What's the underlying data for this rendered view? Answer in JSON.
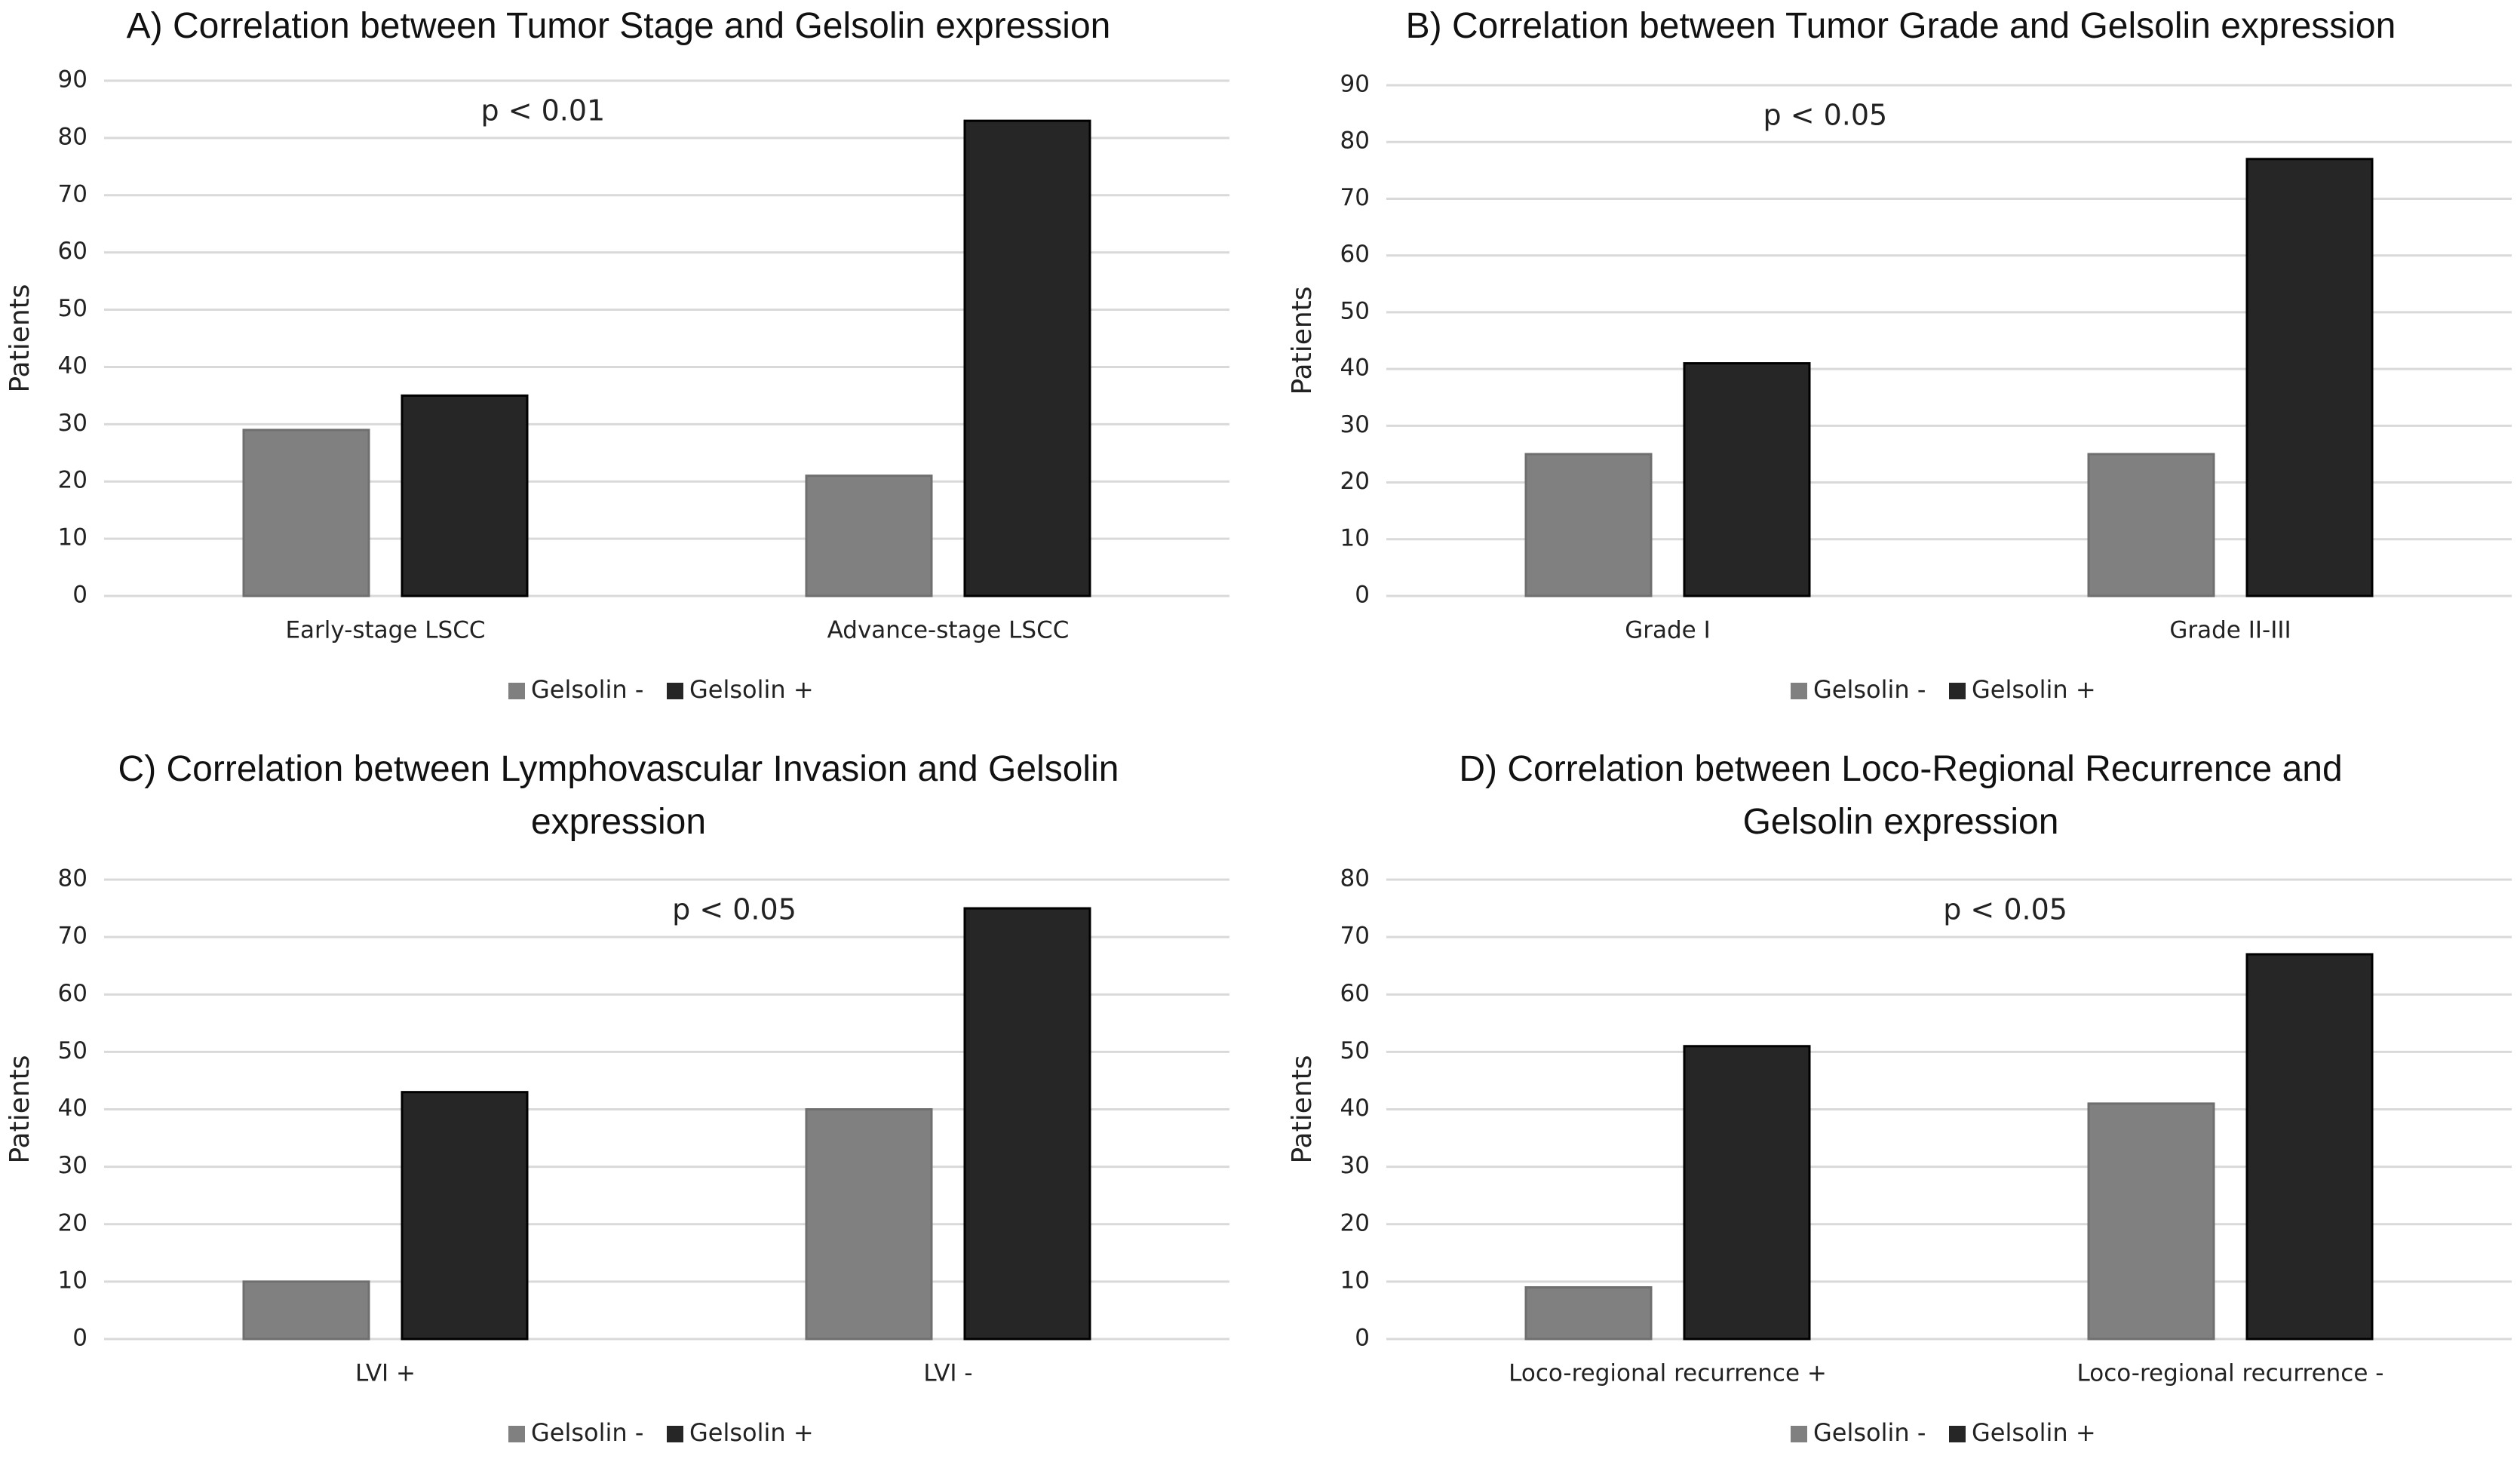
{
  "chart_data": [
    {
      "type": "bar",
      "title": "A) Correlation between Tumor Stage and Gelsolin expression",
      "annotation": "p < 0.01",
      "y_label": "Patients",
      "categories": [
        "Early-stage LSCC",
        "Advance-stage LSCC"
      ],
      "series": [
        {
          "name": "Gelsolin -",
          "color": "#808080",
          "values": [
            29,
            21
          ]
        },
        {
          "name": "Gelsolin +",
          "color": "#262626",
          "values": [
            35,
            83
          ]
        }
      ],
      "ylim": [
        0,
        90
      ],
      "yticks": [
        0,
        10,
        20,
        30,
        40,
        50,
        60,
        70,
        80,
        90
      ],
      "grid": true,
      "legend": "bottom"
    },
    {
      "type": "bar",
      "title": "B) Correlation between Tumor Grade and Gelsolin expression",
      "annotation": "p < 0.05",
      "y_label": "Patients",
      "categories": [
        "Grade I",
        "Grade II-III"
      ],
      "series": [
        {
          "name": "Gelsolin -",
          "color": "#808080",
          "values": [
            25,
            25
          ]
        },
        {
          "name": "Gelsolin +",
          "color": "#262626",
          "values": [
            41,
            77
          ]
        }
      ],
      "ylim": [
        0,
        90
      ],
      "yticks": [
        0,
        10,
        20,
        30,
        40,
        50,
        60,
        70,
        80,
        90
      ],
      "grid": true,
      "legend": "bottom"
    },
    {
      "type": "bar",
      "title": "C) Correlation between Lymphovascular Invasion and Gelsolin expression",
      "annotation": "p < 0.05",
      "y_label": "Patients",
      "categories": [
        "LVI +",
        "LVI -"
      ],
      "series": [
        {
          "name": "Gelsolin -",
          "color": "#808080",
          "values": [
            10,
            40
          ]
        },
        {
          "name": "Gelsolin +",
          "color": "#262626",
          "values": [
            43,
            75
          ]
        }
      ],
      "ylim": [
        0,
        80
      ],
      "yticks": [
        0,
        10,
        20,
        30,
        40,
        50,
        60,
        70,
        80
      ],
      "grid": true,
      "legend": "bottom"
    },
    {
      "type": "bar",
      "title": "D) Correlation between Loco-Regional Recurrence and Gelsolin expression",
      "annotation": "p < 0.05",
      "y_label": "Patients",
      "categories": [
        "Loco-regional recurrence +",
        "Loco-regional recurrence -"
      ],
      "series": [
        {
          "name": "Gelsolin -",
          "color": "#808080",
          "values": [
            9,
            41
          ]
        },
        {
          "name": "Gelsolin +",
          "color": "#262626",
          "values": [
            51,
            67
          ]
        }
      ],
      "ylim": [
        0,
        80
      ],
      "yticks": [
        0,
        10,
        20,
        30,
        40,
        50,
        60,
        70,
        80
      ],
      "grid": true,
      "legend": "bottom"
    }
  ]
}
